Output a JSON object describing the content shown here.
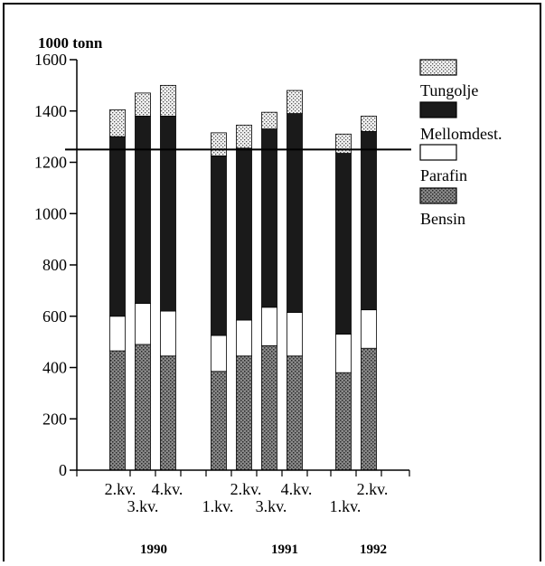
{
  "chart_data": {
    "type": "bar",
    "stacked": true,
    "ylabel": "1000 tonn",
    "ylim": [
      0,
      1600
    ],
    "yticks": [
      0,
      200,
      400,
      600,
      800,
      1000,
      1200,
      1400,
      1600
    ],
    "reference_line": 1250,
    "grid": false,
    "legend_position": "right",
    "bar_labels": [
      "2.kv.",
      "3.kv.",
      "4.kv.",
      "1.kv.",
      "2.kv.",
      "3.kv.",
      "4.kv.",
      "1.kv.",
      "2.kv."
    ],
    "years": [
      {
        "label": "1990",
        "bars": [
          0,
          1,
          2
        ]
      },
      {
        "label": "1991",
        "bars": [
          3,
          4,
          5,
          6
        ]
      },
      {
        "label": "1992",
        "bars": [
          7,
          8
        ]
      }
    ],
    "series": [
      {
        "name": "Bensin",
        "fill": "#808080",
        "pattern": "dots-dark",
        "values": [
          465,
          490,
          445,
          385,
          445,
          485,
          445,
          380,
          475
        ]
      },
      {
        "name": "Parafin",
        "fill": "#ffffff",
        "values": [
          135,
          160,
          175,
          140,
          140,
          150,
          170,
          150,
          150
        ]
      },
      {
        "name": "Mellomdest.",
        "fill": "#1a1a1a",
        "values": [
          700,
          730,
          760,
          700,
          670,
          695,
          775,
          705,
          695
        ]
      },
      {
        "name": "Tungolje",
        "fill": "#e8e8e8",
        "pattern": "dots-light",
        "values": [
          105,
          90,
          120,
          90,
          90,
          65,
          90,
          75,
          60
        ]
      }
    ]
  }
}
